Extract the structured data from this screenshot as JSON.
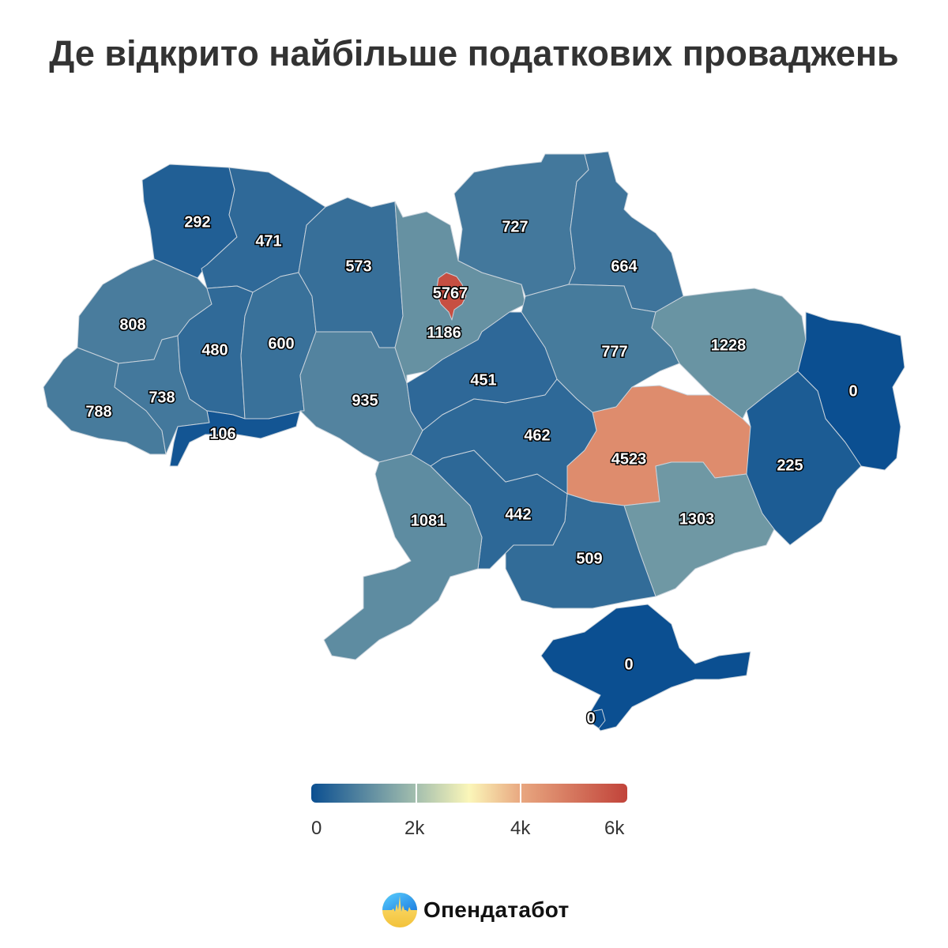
{
  "title": "Де відкрито найбільше податкових проваджень",
  "chart_data": {
    "type": "choropleth",
    "title": "Де відкрито найбільше податкових проваджень",
    "regions": [
      {
        "value": 292
      },
      {
        "value": 471
      },
      {
        "value": 808
      },
      {
        "value": 788
      },
      {
        "value": 738
      },
      {
        "value": 480
      },
      {
        "value": 106
      },
      {
        "value": 600
      },
      {
        "value": 573
      },
      {
        "value": 935
      },
      {
        "value": 1186
      },
      {
        "value": 5767
      },
      {
        "value": 727
      },
      {
        "value": 664
      },
      {
        "value": 777
      },
      {
        "value": 1228
      },
      {
        "value": 0
      },
      {
        "value": 225
      },
      {
        "value": 4523
      },
      {
        "value": 1303
      },
      {
        "value": 509
      },
      {
        "value": 442
      },
      {
        "value": 451
      },
      {
        "value": 462
      },
      {
        "value": 1081
      },
      {
        "value": 0
      },
      {
        "value": 0
      }
    ],
    "color_scale": {
      "range": [
        0,
        6000
      ],
      "stops": [
        {
          "value": 0,
          "color": "#0b4f91"
        },
        {
          "value": 2000,
          "color": "#a4bfae"
        },
        {
          "value": 3000,
          "color": "#fbf6b9"
        },
        {
          "value": 4000,
          "color": "#e8a67f"
        },
        {
          "value": 6000,
          "color": "#c1433a"
        }
      ],
      "tick_labels": [
        "0",
        "2k",
        "4k",
        "6k"
      ]
    }
  },
  "logo": {
    "text": "Опендатабот"
  }
}
